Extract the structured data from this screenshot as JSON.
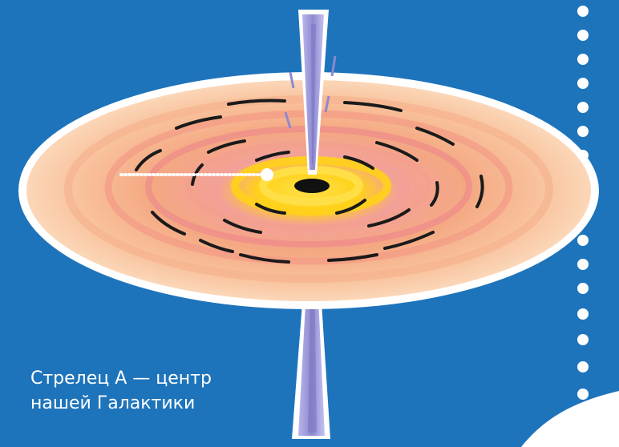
{
  "label": {
    "line1": "Стрелец А — центр",
    "line2": "нашей Галактики"
  },
  "colors": {
    "background": "#1e74bb",
    "disk_outer": "#f8c8a0",
    "disk_mid": "#f4a882",
    "disk_inner_pink": "#ef8f8a",
    "core_yellow": "#ffd21a",
    "black_hole": "#111111",
    "jet": "#9f9cd9",
    "outline": "#ffffff"
  },
  "icons": [
    "black-hole-illustration",
    "accretion-disk",
    "polar-jet-top",
    "polar-jet-bottom"
  ]
}
